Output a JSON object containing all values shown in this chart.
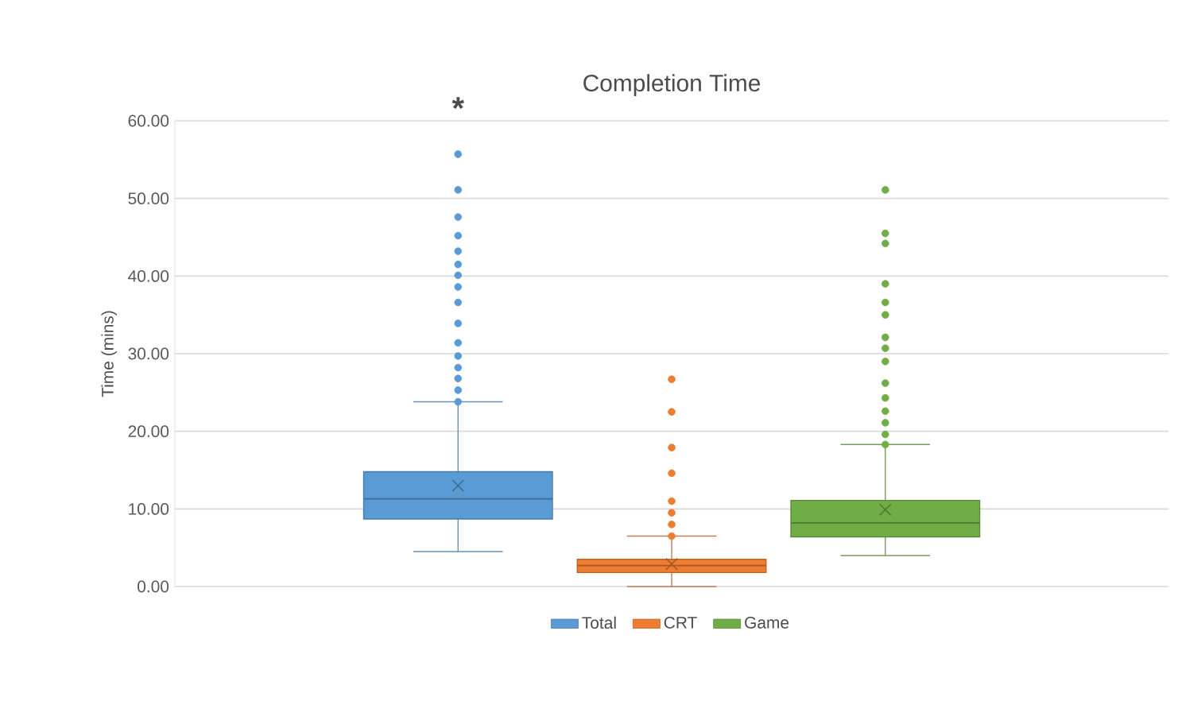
{
  "chart_data": {
    "type": "box",
    "title": "Completion Time",
    "ylabel": "Time (mins)",
    "categories": [
      null
    ],
    "ylim": [
      0,
      60
    ],
    "yticks": [
      {
        "value": 0,
        "label": "0.00"
      },
      {
        "value": 10,
        "label": "10.00"
      },
      {
        "value": 20,
        "label": "20.00"
      },
      {
        "value": 30,
        "label": "30.00"
      },
      {
        "value": 40,
        "label": "40.00"
      },
      {
        "value": 50,
        "label": "50.00"
      },
      {
        "value": 60,
        "label": "60.00"
      }
    ],
    "grid": "y",
    "legend": "bottom",
    "annotations": [
      "*"
    ],
    "series": [
      {
        "name": "Total",
        "color": "#5b9bd5",
        "boxes": [
          {
            "low": 4.5,
            "q1": 8.7,
            "median": 11.3,
            "q3": 14.8,
            "high": 23.8,
            "mean": 13.0,
            "outliers": [
              55.7,
              51.1,
              47.6,
              45.2,
              43.2,
              41.5,
              40.1,
              38.6,
              36.6,
              33.9,
              31.4,
              29.7,
              28.2,
              26.8,
              25.3,
              23.8
            ]
          }
        ]
      },
      {
        "name": "CRT",
        "color": "#ed7d31",
        "boxes": [
          {
            "low": 0.0,
            "q1": 1.8,
            "median": 2.7,
            "q3": 3.5,
            "high": 6.5,
            "mean": 2.9,
            "outliers": [
              26.7,
              22.5,
              17.9,
              14.6,
              11.0,
              9.5,
              8.0,
              6.5
            ]
          }
        ]
      },
      {
        "name": "Game",
        "color": "#70ad47",
        "boxes": [
          {
            "low": 4.0,
            "q1": 6.4,
            "median": 8.2,
            "q3": 11.1,
            "high": 18.3,
            "mean": 9.9,
            "outliers": [
              51.1,
              45.5,
              44.2,
              39.0,
              36.6,
              35.0,
              32.1,
              30.7,
              29.0,
              26.2,
              24.3,
              22.6,
              21.1,
              19.6,
              18.3
            ]
          }
        ]
      }
    ]
  }
}
